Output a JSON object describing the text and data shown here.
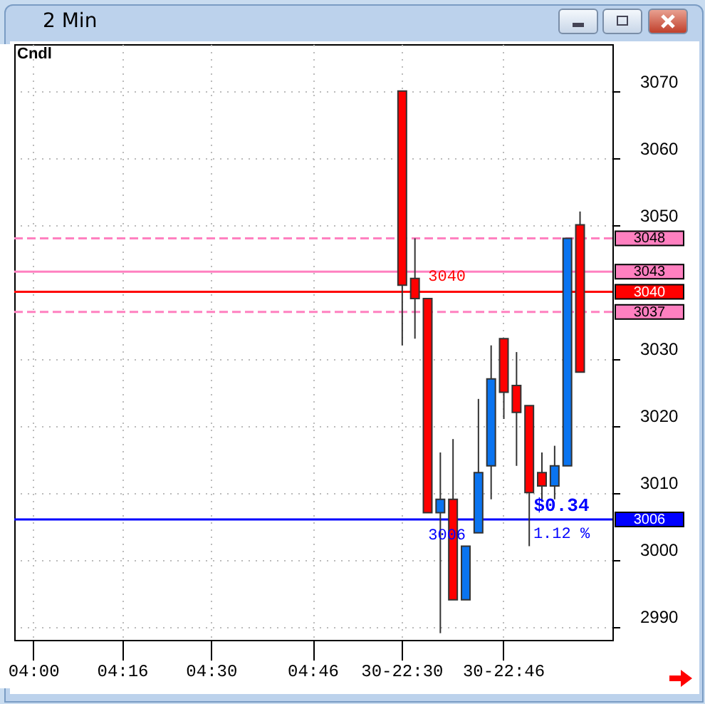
{
  "chart_data": {
    "type": "candlestick",
    "title": "2 Min",
    "subtitle": "Cndl",
    "categories": [
      null,
      "04:00",
      null,
      null,
      null,
      null,
      null,
      null,
      "04:16",
      null,
      null,
      null,
      null,
      null,
      null,
      "04:30",
      null,
      null,
      null,
      null,
      null,
      null,
      null,
      "04:46",
      null,
      null,
      null,
      null,
      null,
      null,
      "30-22:30",
      null,
      null,
      null,
      null,
      null,
      null,
      null,
      "30-22:46",
      null,
      null,
      null,
      null,
      null,
      null,
      null,
      null
    ],
    "ohlc": [
      null,
      null,
      null,
      null,
      null,
      null,
      null,
      null,
      null,
      null,
      null,
      null,
      null,
      null,
      null,
      null,
      null,
      null,
      null,
      null,
      null,
      null,
      null,
      null,
      null,
      null,
      null,
      null,
      null,
      null,
      [
        3070,
        3070,
        3032,
        3041
      ],
      [
        3042,
        3048,
        3033,
        3039
      ],
      [
        3039,
        3039,
        3007,
        3007
      ],
      [
        3007,
        3016,
        2989,
        3009
      ],
      [
        3009,
        3018,
        2994,
        2994
      ],
      [
        2994,
        3002,
        2994,
        3002
      ],
      [
        3004,
        3024,
        3004,
        3013
      ],
      [
        3014,
        3032,
        3009,
        3027
      ],
      [
        3033,
        3033,
        3021,
        3025
      ],
      [
        3026,
        3031,
        3014,
        3022
      ],
      [
        3023,
        3023,
        3002,
        3010
      ],
      [
        3013,
        3016,
        3009,
        3011
      ],
      [
        3011,
        3017,
        3009,
        3014
      ],
      [
        3014,
        3048,
        3014,
        3048
      ],
      [
        3050,
        3052,
        3028,
        3028
      ],
      null,
      null
    ],
    "colors": [
      null,
      null,
      null,
      null,
      null,
      null,
      null,
      null,
      null,
      null,
      null,
      null,
      null,
      null,
      null,
      null,
      null,
      null,
      null,
      null,
      null,
      null,
      null,
      null,
      null,
      null,
      null,
      null,
      null,
      null,
      "#ff0000",
      "#ff0000",
      "#ff0000",
      "#0a74f0",
      "#ff0000",
      "#0a74f0",
      "#0a74f0",
      "#0a74f0",
      "#ff0000",
      "#ff0000",
      "#ff0000",
      "#ff0000",
      "#0a74f0",
      "#0a74f0",
      "#ff0000",
      null,
      null
    ],
    "ylim": [
      2988,
      3077
    ],
    "yticks": [
      2990,
      3000,
      3010,
      3020,
      3030,
      3050,
      3060,
      3070
    ],
    "grid": true,
    "ref_lines": [
      {
        "axis": "y",
        "value": 3048,
        "label": "3048",
        "color": "#ff80c0",
        "line_style": "dashed"
      },
      {
        "axis": "y",
        "value": 3043,
        "label": "3043",
        "color": "#ff80c0",
        "line_style": "solid"
      },
      {
        "axis": "y",
        "value": 3040,
        "label": "3040",
        "color": "#ff0000",
        "line_style": "solid"
      },
      {
        "axis": "y",
        "value": 3037,
        "label": "3037",
        "color": "#ff80c0",
        "line_style": "dashed"
      },
      {
        "axis": "y",
        "value": 3006,
        "label": "3006",
        "color": "#0000ff",
        "line_style": "solid"
      }
    ],
    "annotations": [
      {
        "text": "3040",
        "y": 3040
      },
      {
        "text": "3006",
        "y": 3006
      },
      {
        "text": "$0.34",
        "y": 3006
      },
      {
        "text": "1.12 %",
        "y": 3006
      }
    ]
  }
}
